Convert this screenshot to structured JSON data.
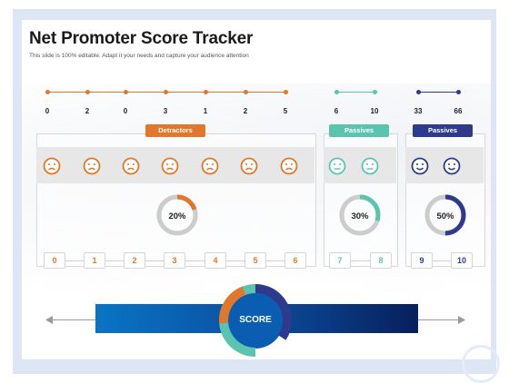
{
  "slide": {
    "title": "Net Promoter Score Tracker",
    "subtitle": "This slide is 100% editable. Adapt it your needs and capture your audience attention"
  },
  "colors": {
    "detractor": "#e0772a",
    "passive": "#5bc4b0",
    "promoter": "#2e3a8c",
    "track": "#cccccc"
  },
  "counts": {
    "detractors": [
      "0",
      "2",
      "0",
      "3",
      "1",
      "2",
      "5"
    ],
    "passives": [
      "6",
      "10"
    ],
    "promoters": [
      "33",
      "66"
    ]
  },
  "categories": {
    "detractors": "Detractors",
    "passives": "Passives",
    "promoters": "Passives"
  },
  "faces": {
    "detractors": [
      "sad-face-icon",
      "sad-face-icon",
      "sad-face-icon",
      "sad-face-icon",
      "sad-face-icon",
      "sad-face-icon",
      "sad-face-icon"
    ],
    "passives": [
      "neutral-face-icon",
      "neutral-face-icon"
    ],
    "promoters": [
      "happy-face-icon",
      "happy-face-icon"
    ]
  },
  "percentages": {
    "detractors": {
      "label": "20%",
      "value": 0.2
    },
    "passives": {
      "label": "30%",
      "value": 0.3
    },
    "promoters": {
      "label": "50%",
      "value": 0.5
    }
  },
  "scale": {
    "detractors": [
      "0",
      "1",
      "2",
      "3",
      "4",
      "5",
      "6"
    ],
    "passives": [
      "7",
      "8"
    ],
    "promoters": [
      "9",
      "10"
    ]
  },
  "score": {
    "label": "SCORE"
  }
}
